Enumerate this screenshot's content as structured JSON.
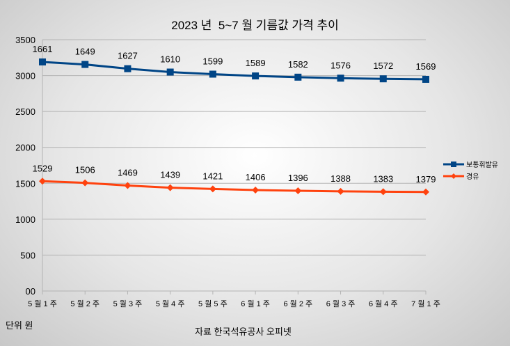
{
  "chart_data": {
    "type": "line",
    "stacked": true,
    "title": "2023 년  5~7 월 기름값 가격 추이",
    "categories": [
      "5 월 1 주",
      "5 월 2 주",
      "5 월 3 주",
      "5 월 4 주",
      "5 월 5 주",
      "6 월 1 주",
      "6 월 2 주",
      "6 월 3 주",
      "6 월 4 주",
      "7 월 1 주"
    ],
    "yticks": [
      "00",
      "500",
      "1000",
      "1500",
      "2000",
      "2500",
      "3000",
      "3500"
    ],
    "ylim": [
      0,
      3500
    ],
    "grid": true,
    "legend_position": "right",
    "series": [
      {
        "name": "보통휘발유",
        "color": "#004586",
        "marker": "square",
        "values": [
          1661,
          1649,
          1627,
          1610,
          1599,
          1589,
          1582,
          1576,
          1572,
          1569
        ]
      },
      {
        "name": "경유",
        "color": "#ff420e",
        "marker": "diamond",
        "values": [
          1529,
          1506,
          1469,
          1439,
          1421,
          1406,
          1396,
          1388,
          1383,
          1379
        ]
      }
    ],
    "unit_note": "단위 원",
    "source_note": "자료 한국석유공사 오피넷"
  }
}
